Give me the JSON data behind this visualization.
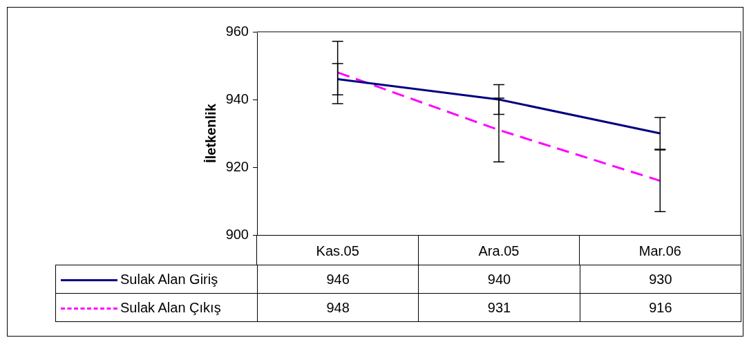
{
  "chart_data": {
    "type": "line",
    "ylabel": "İletkenlik",
    "categories": [
      "Kas.05",
      "Ara.05",
      "Mar.06"
    ],
    "series": [
      {
        "name": "Sulak Alan Giriş",
        "color": "#000080",
        "values": [
          946,
          940,
          930
        ],
        "errors": [
          4.6,
          4.4,
          4.7
        ],
        "line_style": "solid"
      },
      {
        "name": "Sulak Alan Çıkış",
        "color": "#ff00ff",
        "values": [
          948,
          931,
          916
        ],
        "errors": [
          9.2,
          9.4,
          9.1
        ],
        "line_style": "dashed"
      }
    ],
    "ylim": [
      900,
      960
    ],
    "yticks": [
      900,
      920,
      940,
      960
    ],
    "grid": false,
    "marker": "none",
    "data_labels": true,
    "legend": "bottom"
  }
}
